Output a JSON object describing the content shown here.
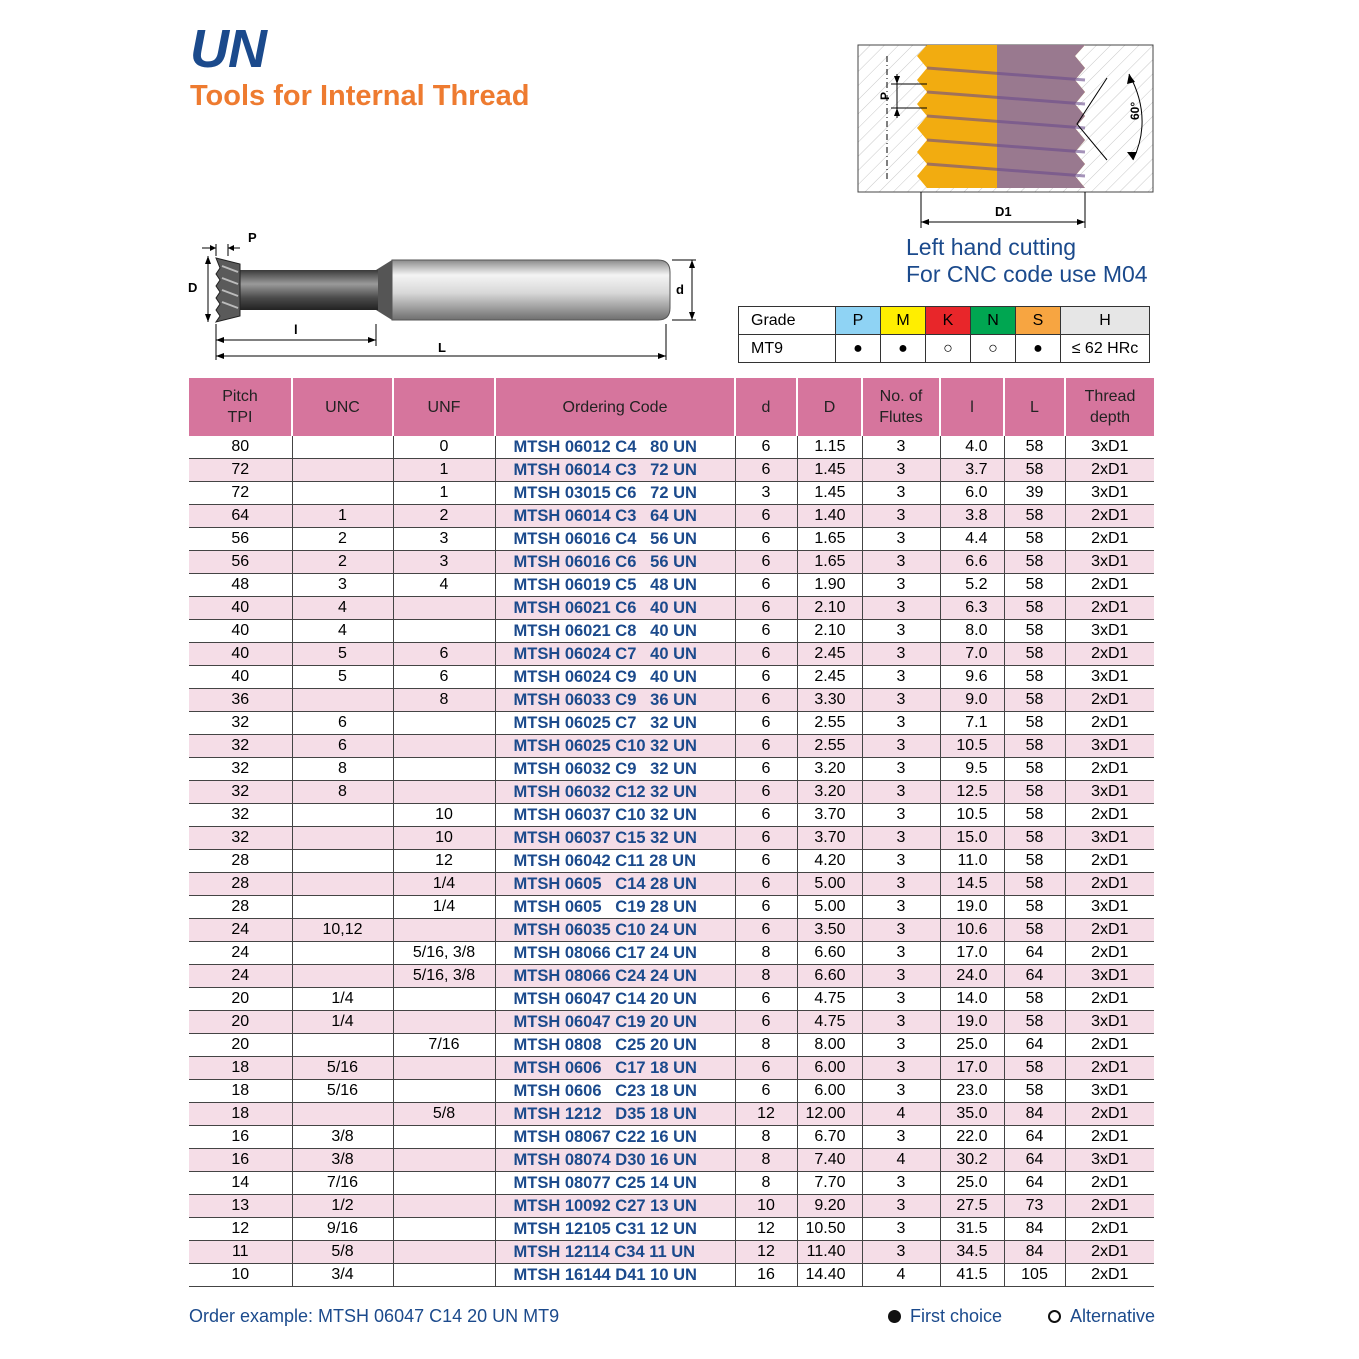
{
  "header": {
    "title": "UN",
    "subtitle": "Tools for Internal Thread"
  },
  "note": {
    "line1": "Left hand cutting",
    "line2": "For CNC code use M04"
  },
  "tool_labels": {
    "p": "P",
    "D": "D",
    "d": "d",
    "l": "l",
    "L": "L"
  },
  "thread_labels": {
    "p": "P",
    "angle": "60°",
    "d1": "D1"
  },
  "grade": {
    "label": "Grade",
    "row_label": "MT9",
    "columns": [
      {
        "name": "P",
        "color": "#8fd3f4",
        "value": "●"
      },
      {
        "name": "M",
        "color": "#ffee00",
        "value": "●"
      },
      {
        "name": "K",
        "color": "#e8262a",
        "value": "○"
      },
      {
        "name": "N",
        "color": "#00a651",
        "value": "○"
      },
      {
        "name": "S",
        "color": "#f7a541",
        "value": "●"
      },
      {
        "name": "H",
        "color": "#e6e6e6",
        "value": "≤ 62 HRc"
      }
    ]
  },
  "table": {
    "headers": [
      "Pitch\nTPI",
      "UNC",
      "UNF",
      "Ordering Code",
      "d",
      "D",
      "No. of\nFlutes",
      "l",
      "L",
      "Thread\ndepth"
    ],
    "rows": [
      [
        "80",
        "",
        "0",
        "MTSH 06012 C4   80 UN",
        "6",
        "1.15",
        "3",
        "4.0",
        "58",
        "3xD1"
      ],
      [
        "72",
        "",
        "1",
        "MTSH 06014 C3   72 UN",
        "6",
        "1.45",
        "3",
        "3.7",
        "58",
        "2xD1"
      ],
      [
        "72",
        "",
        "1",
        "MTSH 03015 C6   72 UN",
        "3",
        "1.45",
        "3",
        "6.0",
        "39",
        "3xD1"
      ],
      [
        "64",
        "1",
        "2",
        "MTSH 06014 C3   64 UN",
        "6",
        "1.40",
        "3",
        "3.8",
        "58",
        "2xD1"
      ],
      [
        "56",
        "2",
        "3",
        "MTSH 06016 C4   56 UN",
        "6",
        "1.65",
        "3",
        "4.4",
        "58",
        "2xD1"
      ],
      [
        "56",
        "2",
        "3",
        "MTSH 06016 C6   56 UN",
        "6",
        "1.65",
        "3",
        "6.6",
        "58",
        "3xD1"
      ],
      [
        "48",
        "3",
        "4",
        "MTSH 06019 C5   48 UN",
        "6",
        "1.90",
        "3",
        "5.2",
        "58",
        "2xD1"
      ],
      [
        "40",
        "4",
        "",
        "MTSH 06021 C6   40 UN",
        "6",
        "2.10",
        "3",
        "6.3",
        "58",
        "2xD1"
      ],
      [
        "40",
        "4",
        "",
        "MTSH 06021 C8   40 UN",
        "6",
        "2.10",
        "3",
        "8.0",
        "58",
        "3xD1"
      ],
      [
        "40",
        "5",
        "6",
        "MTSH 06024 C7   40 UN",
        "6",
        "2.45",
        "3",
        "7.0",
        "58",
        "2xD1"
      ],
      [
        "40",
        "5",
        "6",
        "MTSH 06024 C9   40 UN",
        "6",
        "2.45",
        "3",
        "9.6",
        "58",
        "3xD1"
      ],
      [
        "36",
        "",
        "8",
        "MTSH 06033 C9   36 UN",
        "6",
        "3.30",
        "3",
        "9.0",
        "58",
        "2xD1"
      ],
      [
        "32",
        "6",
        "",
        "MTSH 06025 C7   32 UN",
        "6",
        "2.55",
        "3",
        "7.1",
        "58",
        "2xD1"
      ],
      [
        "32",
        "6",
        "",
        "MTSH 06025 C10 32 UN",
        "6",
        "2.55",
        "3",
        "10.5",
        "58",
        "3xD1"
      ],
      [
        "32",
        "8",
        "",
        "MTSH 06032 C9   32 UN",
        "6",
        "3.20",
        "3",
        "9.5",
        "58",
        "2xD1"
      ],
      [
        "32",
        "8",
        "",
        "MTSH 06032 C12 32 UN",
        "6",
        "3.20",
        "3",
        "12.5",
        "58",
        "3xD1"
      ],
      [
        "32",
        "",
        "10",
        "MTSH 06037 C10 32 UN",
        "6",
        "3.70",
        "3",
        "10.5",
        "58",
        "2xD1"
      ],
      [
        "32",
        "",
        "10",
        "MTSH 06037 C15 32 UN",
        "6",
        "3.70",
        "3",
        "15.0",
        "58",
        "3xD1"
      ],
      [
        "28",
        "",
        "12",
        "MTSH 06042 C11 28 UN",
        "6",
        "4.20",
        "3",
        "11.0",
        "58",
        "2xD1"
      ],
      [
        "28",
        "",
        "1/4",
        "MTSH 0605   C14 28 UN",
        "6",
        "5.00",
        "3",
        "14.5",
        "58",
        "2xD1"
      ],
      [
        "28",
        "",
        "1/4",
        "MTSH 0605   C19 28 UN",
        "6",
        "5.00",
        "3",
        "19.0",
        "58",
        "3xD1"
      ],
      [
        "24",
        "10,12",
        "",
        "MTSH 06035 C10 24 UN",
        "6",
        "3.50",
        "3",
        "10.6",
        "58",
        "2xD1"
      ],
      [
        "24",
        "",
        "5/16, 3/8",
        "MTSH 08066 C17 24 UN",
        "8",
        "6.60",
        "3",
        "17.0",
        "64",
        "2xD1"
      ],
      [
        "24",
        "",
        "5/16, 3/8",
        "MTSH 08066 C24 24 UN",
        "8",
        "6.60",
        "3",
        "24.0",
        "64",
        "3xD1"
      ],
      [
        "20",
        "1/4",
        "",
        "MTSH 06047 C14 20 UN",
        "6",
        "4.75",
        "3",
        "14.0",
        "58",
        "2xD1"
      ],
      [
        "20",
        "1/4",
        "",
        "MTSH 06047 C19 20 UN",
        "6",
        "4.75",
        "3",
        "19.0",
        "58",
        "3xD1"
      ],
      [
        "20",
        "",
        "7/16",
        "MTSH 0808   C25 20 UN",
        "8",
        "8.00",
        "3",
        "25.0",
        "64",
        "2xD1"
      ],
      [
        "18",
        "5/16",
        "",
        "MTSH 0606   C17 18 UN",
        "6",
        "6.00",
        "3",
        "17.0",
        "58",
        "2xD1"
      ],
      [
        "18",
        "5/16",
        "",
        "MTSH 0606   C23 18 UN",
        "6",
        "6.00",
        "3",
        "23.0",
        "58",
        "3xD1"
      ],
      [
        "18",
        "",
        "5/8",
        "MTSH 1212   D35 18 UN",
        "12",
        "12.00",
        "4",
        "35.0",
        "84",
        "2xD1"
      ],
      [
        "16",
        "3/8",
        "",
        "MTSH 08067 C22 16 UN",
        "8",
        "6.70",
        "3",
        "22.0",
        "64",
        "2xD1"
      ],
      [
        "16",
        "3/8",
        "",
        "MTSH 08074 D30 16 UN",
        "8",
        "7.40",
        "4",
        "30.2",
        "64",
        "3xD1"
      ],
      [
        "14",
        "7/16",
        "",
        "MTSH 08077 C25 14 UN",
        "8",
        "7.70",
        "3",
        "25.0",
        "64",
        "2xD1"
      ],
      [
        "13",
        "1/2",
        "",
        "MTSH 10092 C27 13 UN",
        "10",
        "9.20",
        "3",
        "27.5",
        "73",
        "2xD1"
      ],
      [
        "12",
        "9/16",
        "",
        "MTSH 12105 C31 12 UN",
        "12",
        "10.50",
        "3",
        "31.5",
        "84",
        "2xD1"
      ],
      [
        "11",
        "5/8",
        "",
        "MTSH 12114 C34 11 UN",
        "12",
        "11.40",
        "3",
        "34.5",
        "84",
        "2xD1"
      ],
      [
        "10",
        "3/4",
        "",
        "MTSH 16144 D41 10 UN",
        "16",
        "14.40",
        "4",
        "41.5",
        "105",
        "2xD1"
      ]
    ]
  },
  "footer": {
    "order_example": "Order example: MTSH 06047 C14 20 UN MT9",
    "first_choice": "First choice",
    "alternative": "Alternative"
  }
}
